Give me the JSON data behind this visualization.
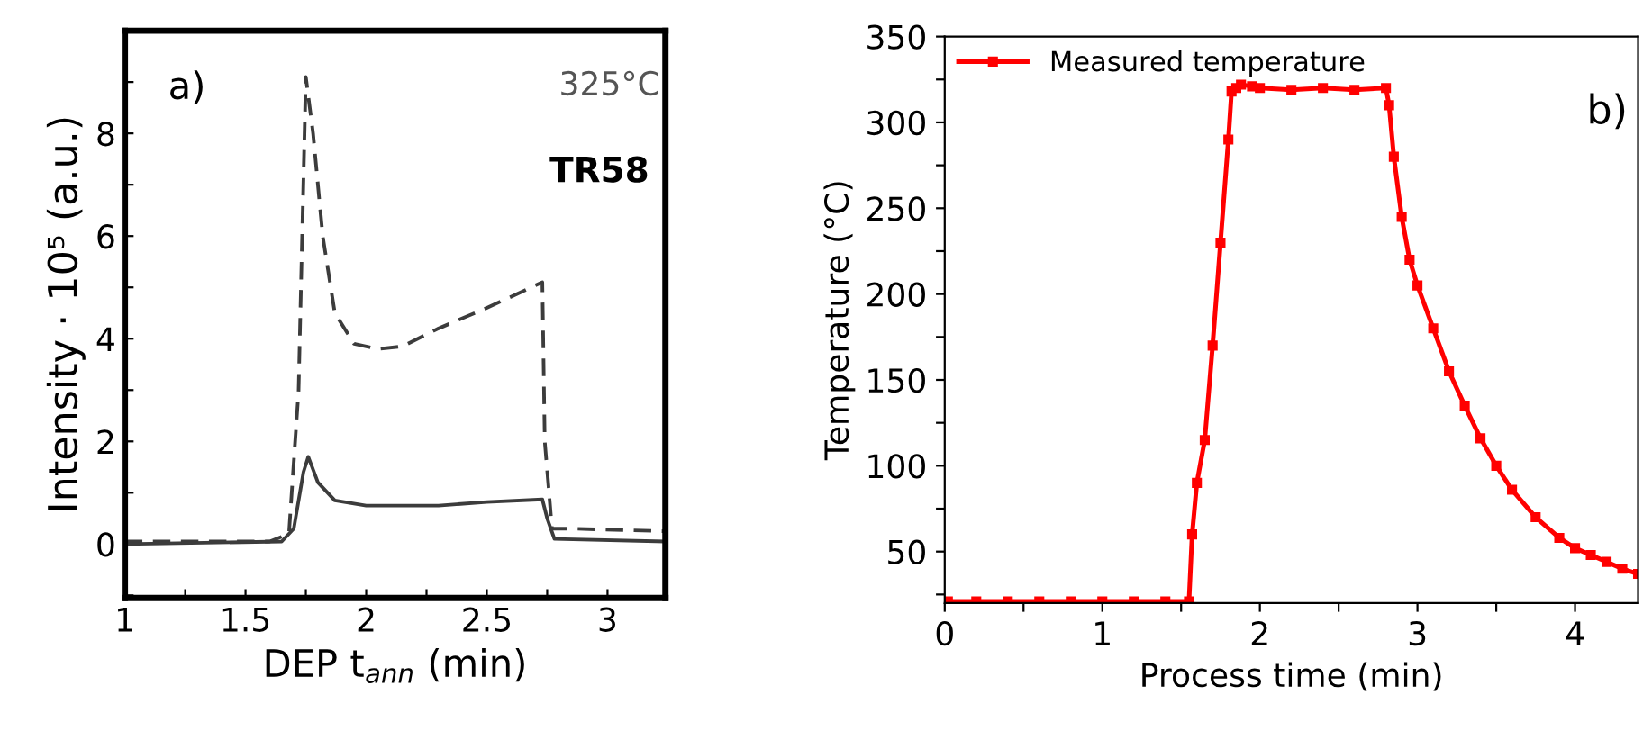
{
  "chart_data": [
    {
      "type": "line",
      "xlabel": "DEP t$_{ann}$ (min)",
      "ylabel": "Intensity · 10⁵ (a.u.)",
      "annotations": [
        "a)",
        "325°C",
        "TR58"
      ],
      "xlim": [
        1,
        3.24
      ],
      "ylim": [
        -1.05,
        10
      ],
      "xticks": [
        1,
        {
          "value": 1.25,
          "label": null
        },
        1.5,
        {
          "value": 1.75,
          "label": null
        },
        2,
        {
          "value": 2.25,
          "label": null
        },
        2.5,
        {
          "value": 2.75,
          "label": null
        },
        3
      ],
      "yticks": [
        {
          "value": -1,
          "label": null
        },
        0,
        {
          "value": 1,
          "label": null
        },
        2,
        {
          "value": 3,
          "label": null
        },
        4,
        {
          "value": 5,
          "label": null
        },
        6,
        {
          "value": 7,
          "label": null
        },
        8,
        {
          "value": 9,
          "label": null
        }
      ],
      "grid": false,
      "legend": false,
      "marker": "none",
      "series": [
        {
          "color": "#3c3c3c",
          "line_style": "dashed",
          "x": [
            1.0,
            1.6,
            1.68,
            1.72,
            1.75,
            1.78,
            1.82,
            1.87,
            1.95,
            2.05,
            2.15,
            2.3,
            2.5,
            2.73,
            2.74,
            2.77,
            2.85,
            3.24
          ],
          "values": [
            0.05,
            0.05,
            0.2,
            3,
            9.1,
            8,
            6,
            4.5,
            3.9,
            3.8,
            3.85,
            4.2,
            4.6,
            5.1,
            2,
            0.3,
            0.3,
            0.25
          ]
        },
        {
          "color": "#3c3c3c",
          "line_style": "solid",
          "x": [
            1.0,
            1.65,
            1.7,
            1.74,
            1.76,
            1.8,
            1.87,
            2.0,
            2.3,
            2.5,
            2.73,
            2.75,
            2.78,
            3.24
          ],
          "values": [
            0.0,
            0.05,
            0.3,
            1.4,
            1.7,
            1.2,
            0.85,
            0.75,
            0.75,
            0.82,
            0.87,
            0.5,
            0.1,
            0.05
          ]
        }
      ]
    },
    {
      "type": "line",
      "xlabel": "Process time (min)",
      "ylabel": "Temperature (°C)",
      "annotations": [
        "b)"
      ],
      "xlim": [
        0,
        4.4
      ],
      "ylim": [
        20,
        350
      ],
      "xticks": [
        0,
        {
          "value": 0.5,
          "label": null
        },
        1,
        {
          "value": 1.5,
          "label": null
        },
        2,
        {
          "value": 2.5,
          "label": null
        },
        3,
        {
          "value": 3.5,
          "label": null
        },
        4
      ],
      "yticks": [
        {
          "value": 25,
          "label": null
        },
        50,
        {
          "value": 75,
          "label": null
        },
        100,
        {
          "value": 125,
          "label": null
        },
        150,
        {
          "value": 175,
          "label": null
        },
        200,
        {
          "value": 225,
          "label": null
        },
        250,
        {
          "value": 275,
          "label": null
        },
        300,
        {
          "value": 325,
          "label": null
        },
        350
      ],
      "grid": false,
      "legend": "top left",
      "marker": "square",
      "series": [
        {
          "name": "Measured temperature",
          "color": "#ff0000",
          "line_style": "solid",
          "x": [
            0.02,
            0.2,
            0.4,
            0.6,
            0.8,
            1.0,
            1.2,
            1.4,
            1.55,
            1.57,
            1.6,
            1.65,
            1.7,
            1.75,
            1.8,
            1.82,
            1.85,
            1.88,
            1.95,
            2.0,
            2.2,
            2.4,
            2.6,
            2.8,
            2.82,
            2.85,
            2.9,
            2.95,
            3.0,
            3.1,
            3.2,
            3.3,
            3.4,
            3.5,
            3.6,
            3.75,
            3.9,
            4.0,
            4.1,
            4.2,
            4.3,
            4.4
          ],
          "values": [
            21,
            21,
            21,
            21,
            21,
            21,
            21,
            21,
            21,
            60,
            90,
            115,
            170,
            230,
            290,
            318,
            320,
            322,
            321,
            320,
            319,
            320,
            319,
            320,
            310,
            280,
            245,
            220,
            205,
            180,
            155,
            135,
            116,
            100,
            86,
            70,
            58,
            52,
            48,
            44,
            40,
            37
          ]
        }
      ]
    }
  ]
}
